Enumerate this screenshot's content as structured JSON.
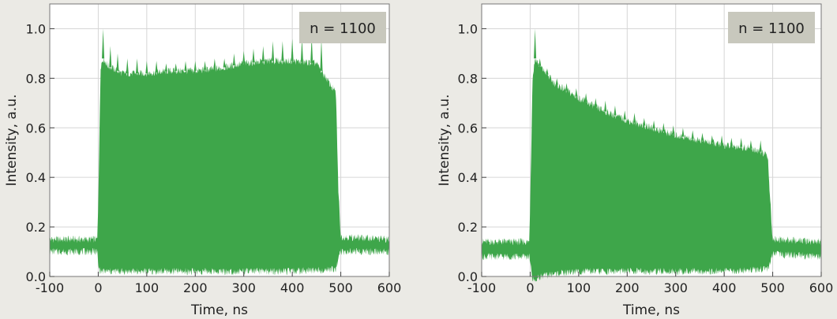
{
  "chart_data": [
    {
      "type": "area",
      "title": "",
      "xlabel": "Time, ns",
      "ylabel": "Intensity, a.u.",
      "xlim": [
        -100,
        600
      ],
      "ylim": [
        0.0,
        1.1
      ],
      "xticks": [
        -100,
        0,
        100,
        200,
        300,
        400,
        500,
        600
      ],
      "yticks": [
        0.0,
        0.2,
        0.4,
        0.6,
        0.8,
        1.0
      ],
      "xtick_labels": [
        "-100",
        "0",
        "100",
        "200",
        "300",
        "400",
        "500",
        "600"
      ],
      "ytick_labels": [
        "0.0",
        "0.2",
        "0.4",
        "0.6",
        "0.8",
        "1.0"
      ],
      "annotation": "n = 1100",
      "grid": true,
      "color": "#3ea64a",
      "series": [
        {
          "upper_envelope": {
            "x": [
              -100,
              -2,
              0,
              5,
              10,
              20,
              50,
              100,
              150,
              200,
              250,
              300,
              350,
              400,
              450,
              490,
              495,
              500,
              600
            ],
            "y": [
              0.15,
              0.15,
              0.3,
              0.85,
              0.88,
              0.85,
              0.82,
              0.82,
              0.83,
              0.83,
              0.84,
              0.86,
              0.87,
              0.87,
              0.86,
              0.74,
              0.35,
              0.16,
              0.15
            ]
          },
          "lower_envelope": {
            "x": [
              -100,
              -2,
              0,
              5,
              100,
              200,
              300,
              400,
              490,
              495,
              500,
              600
            ],
            "y": [
              0.1,
              0.1,
              0.04,
              0.02,
              0.02,
              0.02,
              0.02,
              0.02,
              0.03,
              0.07,
              0.1,
              0.1
            ]
          },
          "peaks": {
            "x": [
              10,
              25,
              40,
              60,
              80,
              100,
              120,
              140,
              160,
              180,
              200,
              220,
              240,
              260,
              280,
              300,
              320,
              340,
              360,
              380,
              400,
              420,
              440,
              460
            ],
            "y": [
              1.0,
              0.93,
              0.9,
              0.88,
              0.88,
              0.87,
              0.87,
              0.86,
              0.86,
              0.87,
              0.87,
              0.87,
              0.88,
              0.88,
              0.9,
              0.91,
              0.92,
              0.93,
              0.95,
              0.95,
              0.96,
              0.96,
              0.97,
              0.96
            ]
          }
        }
      ]
    },
    {
      "type": "area",
      "title": "",
      "xlabel": "Time, ns",
      "ylabel": "Intensity, a.u.",
      "xlim": [
        -100,
        600
      ],
      "ylim": [
        0.0,
        1.1
      ],
      "xticks": [
        -100,
        0,
        100,
        200,
        300,
        400,
        500,
        600
      ],
      "yticks": [
        0.0,
        0.2,
        0.4,
        0.6,
        0.8,
        1.0
      ],
      "xtick_labels": [
        "-100",
        "0",
        "100",
        "200",
        "300",
        "400",
        "500",
        "600"
      ],
      "ytick_labels": [
        "0.0",
        "0.2",
        "0.4",
        "0.6",
        "0.8",
        "1.0"
      ],
      "annotation": "n = 1100",
      "grid": true,
      "color": "#3ea64a",
      "series": [
        {
          "upper_envelope": {
            "x": [
              -100,
              -2,
              0,
              5,
              10,
              20,
              50,
              100,
              150,
              200,
              250,
              300,
              350,
              400,
              450,
              480,
              490,
              495,
              500,
              600
            ],
            "y": [
              0.14,
              0.14,
              0.3,
              0.8,
              0.88,
              0.85,
              0.78,
              0.72,
              0.67,
              0.63,
              0.6,
              0.57,
              0.55,
              0.53,
              0.52,
              0.5,
              0.48,
              0.3,
              0.15,
              0.14
            ]
          },
          "lower_envelope": {
            "x": [
              -100,
              -2,
              5,
              10,
              20,
              50,
              100,
              200,
              300,
              400,
              490,
              495,
              500,
              600
            ],
            "y": [
              0.08,
              0.08,
              -0.01,
              -0.02,
              0.0,
              0.01,
              0.02,
              0.02,
              0.02,
              0.02,
              0.03,
              0.06,
              0.09,
              0.08
            ]
          },
          "peaks": {
            "x": [
              10,
              20,
              35,
              55,
              75,
              95,
              115,
              135,
              155,
              175,
              195,
              215,
              235,
              255,
              275,
              295,
              315,
              335,
              355,
              375,
              395,
              415,
              435,
              455,
              475
            ],
            "y": [
              1.0,
              0.88,
              0.84,
              0.8,
              0.78,
              0.76,
              0.74,
              0.72,
              0.71,
              0.69,
              0.67,
              0.66,
              0.64,
              0.63,
              0.62,
              0.61,
              0.6,
              0.59,
              0.58,
              0.57,
              0.57,
              0.56,
              0.56,
              0.55,
              0.55
            ]
          }
        }
      ]
    }
  ]
}
